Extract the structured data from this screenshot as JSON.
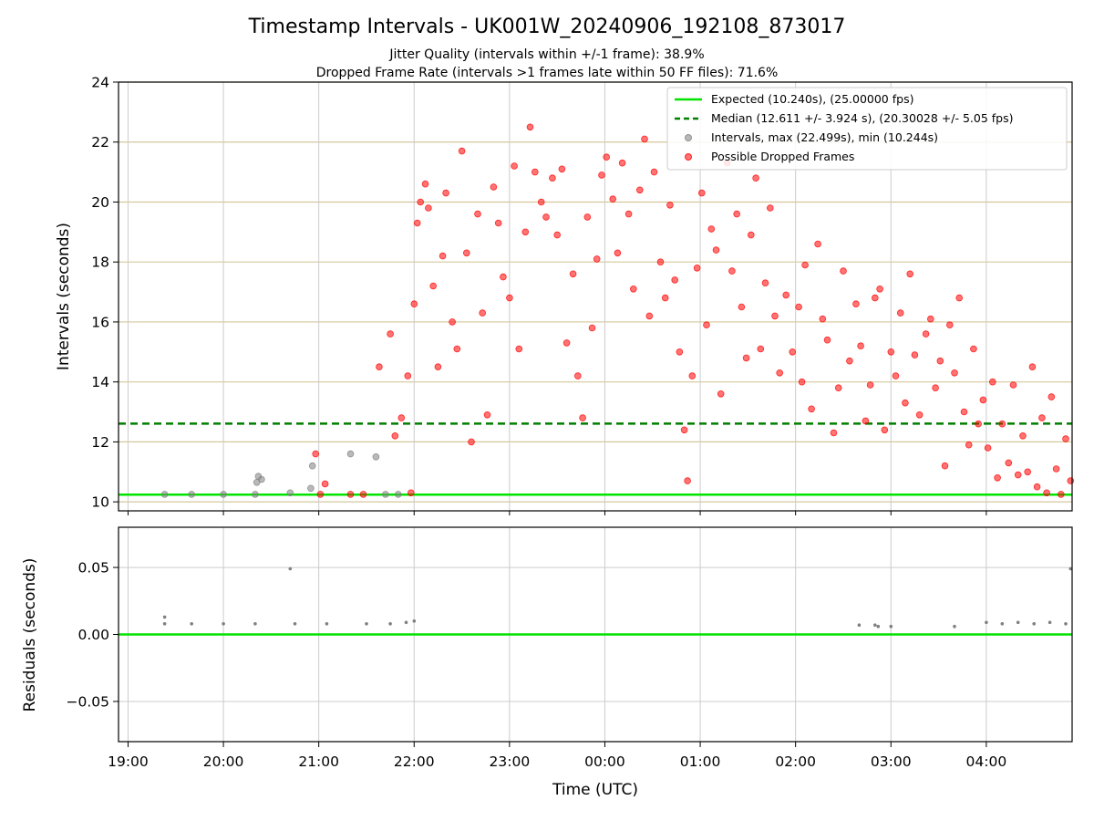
{
  "chart_data": [
    {
      "type": "scatter",
      "title": "Timestamp Intervals - UK001W_20240906_192108_873017",
      "subtitle_1": "Jitter Quality (intervals within +/-1 frame): 38.9%",
      "subtitle_2": "Dropped Frame Rate (intervals >1 frames late within 50 FF files): 71.6%",
      "ylabel": "Intervals (seconds)",
      "xlabel": "",
      "ylim": [
        9.7,
        24
      ],
      "xlim": [
        "18:54",
        "04:54"
      ],
      "yticks": [
        "10",
        "12",
        "14",
        "16",
        "18",
        "20",
        "22",
        "24"
      ],
      "grid": true,
      "legend_position": "top-right",
      "legend": [
        "Expected (10.240s), (25.00000 fps)",
        "Median (12.611 +/- 3.924 s), (20.30028 +/- 5.05 fps)",
        "Intervals, max (22.499s), min (10.244s)",
        "Possible Dropped Frames"
      ],
      "expected_interval": 10.24,
      "median_interval": 12.611,
      "colors": {
        "expected": "#00e400",
        "median": "#007f00",
        "intervals": "#808080",
        "dropped": "#ff0000"
      },
      "series": [
        {
          "name": "Intervals, max (22.499s), min (10.244s)",
          "points": [
            [
              "19:23",
              10.25
            ],
            [
              "19:40",
              10.25
            ],
            [
              "20:00",
              10.25
            ],
            [
              "20:20",
              10.25
            ],
            [
              "20:21",
              10.65
            ],
            [
              "20:22",
              10.85
            ],
            [
              "20:24",
              10.75
            ],
            [
              "20:42",
              10.3
            ],
            [
              "20:55",
              10.45
            ],
            [
              "20:56",
              11.2
            ],
            [
              "21:20",
              11.6
            ],
            [
              "21:36",
              11.5
            ],
            [
              "21:42",
              10.25
            ],
            [
              "21:50",
              10.25
            ]
          ]
        },
        {
          "name": "Possible Dropped Frames",
          "points": [
            [
              "20:58",
              11.6
            ],
            [
              "21:01",
              10.25
            ],
            [
              "21:04",
              10.6
            ],
            [
              "21:20",
              10.25
            ],
            [
              "21:28",
              10.25
            ],
            [
              "21:38",
              14.5
            ],
            [
              "21:45",
              15.6
            ],
            [
              "21:48",
              12.2
            ],
            [
              "21:52",
              12.8
            ],
            [
              "21:56",
              14.2
            ],
            [
              "21:58",
              10.3
            ],
            [
              "22:00",
              16.6
            ],
            [
              "22:02",
              19.3
            ],
            [
              "22:04",
              20.0
            ],
            [
              "22:07",
              20.6
            ],
            [
              "22:09",
              19.8
            ],
            [
              "22:12",
              17.2
            ],
            [
              "22:15",
              14.5
            ],
            [
              "22:18",
              18.2
            ],
            [
              "22:20",
              20.3
            ],
            [
              "22:24",
              16.0
            ],
            [
              "22:27",
              15.1
            ],
            [
              "22:30",
              21.7
            ],
            [
              "22:33",
              18.3
            ],
            [
              "22:36",
              12.0
            ],
            [
              "22:40",
              19.6
            ],
            [
              "22:43",
              16.3
            ],
            [
              "22:46",
              12.9
            ],
            [
              "22:50",
              20.5
            ],
            [
              "22:53",
              19.3
            ],
            [
              "22:56",
              17.5
            ],
            [
              "23:00",
              16.8
            ],
            [
              "23:03",
              21.2
            ],
            [
              "23:06",
              15.1
            ],
            [
              "23:10",
              19.0
            ],
            [
              "23:13",
              22.5
            ],
            [
              "23:16",
              21.0
            ],
            [
              "23:20",
              20.0
            ],
            [
              "23:23",
              19.5
            ],
            [
              "23:27",
              20.8
            ],
            [
              "23:30",
              18.9
            ],
            [
              "23:33",
              21.1
            ],
            [
              "23:36",
              15.3
            ],
            [
              "23:40",
              17.6
            ],
            [
              "23:43",
              14.2
            ],
            [
              "23:46",
              12.8
            ],
            [
              "23:49",
              19.5
            ],
            [
              "23:52",
              15.8
            ],
            [
              "23:55",
              18.1
            ],
            [
              "23:58",
              20.9
            ],
            [
              "00:01",
              21.5
            ],
            [
              "00:05",
              20.1
            ],
            [
              "00:08",
              18.3
            ],
            [
              "00:11",
              21.3
            ],
            [
              "00:15",
              19.6
            ],
            [
              "00:18",
              17.1
            ],
            [
              "00:22",
              20.4
            ],
            [
              "00:25",
              22.1
            ],
            [
              "00:28",
              16.2
            ],
            [
              "00:31",
              21.0
            ],
            [
              "00:35",
              18.0
            ],
            [
              "00:38",
              16.8
            ],
            [
              "00:41",
              19.9
            ],
            [
              "00:44",
              17.4
            ],
            [
              "00:47",
              15.0
            ],
            [
              "00:50",
              12.4
            ],
            [
              "00:52",
              10.7
            ],
            [
              "00:55",
              14.2
            ],
            [
              "00:58",
              17.8
            ],
            [
              "01:01",
              20.3
            ],
            [
              "01:04",
              15.9
            ],
            [
              "01:07",
              19.1
            ],
            [
              "01:10",
              18.4
            ],
            [
              "01:13",
              13.6
            ],
            [
              "01:17",
              21.3
            ],
            [
              "01:20",
              17.7
            ],
            [
              "01:23",
              19.6
            ],
            [
              "01:26",
              16.5
            ],
            [
              "01:29",
              14.8
            ],
            [
              "01:32",
              18.9
            ],
            [
              "01:35",
              20.8
            ],
            [
              "01:38",
              15.1
            ],
            [
              "01:41",
              17.3
            ],
            [
              "01:44",
              19.8
            ],
            [
              "01:47",
              16.2
            ],
            [
              "01:50",
              14.3
            ],
            [
              "01:54",
              16.9
            ],
            [
              "01:58",
              15.0
            ],
            [
              "02:02",
              16.5
            ],
            [
              "02:04",
              14.0
            ],
            [
              "02:06",
              17.9
            ],
            [
              "02:10",
              13.1
            ],
            [
              "02:14",
              18.6
            ],
            [
              "02:17",
              16.1
            ],
            [
              "02:20",
              15.4
            ],
            [
              "02:24",
              12.3
            ],
            [
              "02:27",
              13.8
            ],
            [
              "02:30",
              17.7
            ],
            [
              "02:34",
              14.7
            ],
            [
              "02:38",
              16.6
            ],
            [
              "02:41",
              15.2
            ],
            [
              "02:44",
              12.7
            ],
            [
              "02:47",
              13.9
            ],
            [
              "02:50",
              16.8
            ],
            [
              "02:53",
              17.1
            ],
            [
              "02:56",
              12.4
            ],
            [
              "03:00",
              15.0
            ],
            [
              "03:03",
              14.2
            ],
            [
              "03:06",
              16.3
            ],
            [
              "03:09",
              13.3
            ],
            [
              "03:12",
              17.6
            ],
            [
              "03:15",
              14.9
            ],
            [
              "03:18",
              12.9
            ],
            [
              "03:22",
              15.6
            ],
            [
              "03:25",
              16.1
            ],
            [
              "03:28",
              13.8
            ],
            [
              "03:31",
              14.7
            ],
            [
              "03:34",
              11.2
            ],
            [
              "03:37",
              15.9
            ],
            [
              "03:40",
              14.3
            ],
            [
              "03:43",
              16.8
            ],
            [
              "03:46",
              13.0
            ],
            [
              "03:49",
              11.9
            ],
            [
              "03:52",
              15.1
            ],
            [
              "03:55",
              12.6
            ],
            [
              "03:58",
              13.4
            ],
            [
              "04:01",
              11.8
            ],
            [
              "04:04",
              14.0
            ],
            [
              "04:07",
              10.8
            ],
            [
              "04:10",
              12.6
            ],
            [
              "04:14",
              11.3
            ],
            [
              "04:17",
              13.9
            ],
            [
              "04:20",
              10.9
            ],
            [
              "04:23",
              12.2
            ],
            [
              "04:26",
              11.0
            ],
            [
              "04:29",
              14.5
            ],
            [
              "04:32",
              10.5
            ],
            [
              "04:35",
              12.8
            ],
            [
              "04:38",
              10.3
            ],
            [
              "04:41",
              13.5
            ],
            [
              "04:44",
              11.1
            ],
            [
              "04:47",
              10.25
            ],
            [
              "04:50",
              12.1
            ],
            [
              "04:53",
              10.7
            ]
          ]
        }
      ]
    },
    {
      "type": "scatter",
      "title": "",
      "ylabel": "Residuals (seconds)",
      "xlabel": "Time (UTC)",
      "ylim": [
        -0.08,
        0.08
      ],
      "xlim": [
        "18:54",
        "04:54"
      ],
      "yticks": [
        "0.05",
        "0.00",
        "−0.05"
      ],
      "xticks": [
        "19:00",
        "20:00",
        "21:00",
        "22:00",
        "23:00",
        "00:00",
        "01:00",
        "02:00",
        "03:00",
        "04:00"
      ],
      "grid": true,
      "zero_line": 0.0,
      "series": [
        {
          "name": "",
          "points": [
            [
              "19:23",
              0.013
            ],
            [
              "19:23",
              0.008
            ],
            [
              "19:40",
              0.008
            ],
            [
              "20:00",
              0.008
            ],
            [
              "20:20",
              0.008
            ],
            [
              "20:42",
              0.049
            ],
            [
              "20:45",
              0.008
            ],
            [
              "21:05",
              0.008
            ],
            [
              "21:30",
              0.008
            ],
            [
              "21:45",
              0.008
            ],
            [
              "21:55",
              0.009
            ],
            [
              "22:00",
              0.01
            ],
            [
              "02:40",
              0.007
            ],
            [
              "02:50",
              0.007
            ],
            [
              "02:52",
              0.006
            ],
            [
              "03:00",
              0.006
            ],
            [
              "03:40",
              0.006
            ],
            [
              "04:00",
              0.009
            ],
            [
              "04:10",
              0.008
            ],
            [
              "04:20",
              0.009
            ],
            [
              "04:30",
              0.008
            ],
            [
              "04:40",
              0.009
            ],
            [
              "04:50",
              0.008
            ],
            [
              "04:53",
              0.049
            ]
          ]
        }
      ]
    }
  ]
}
